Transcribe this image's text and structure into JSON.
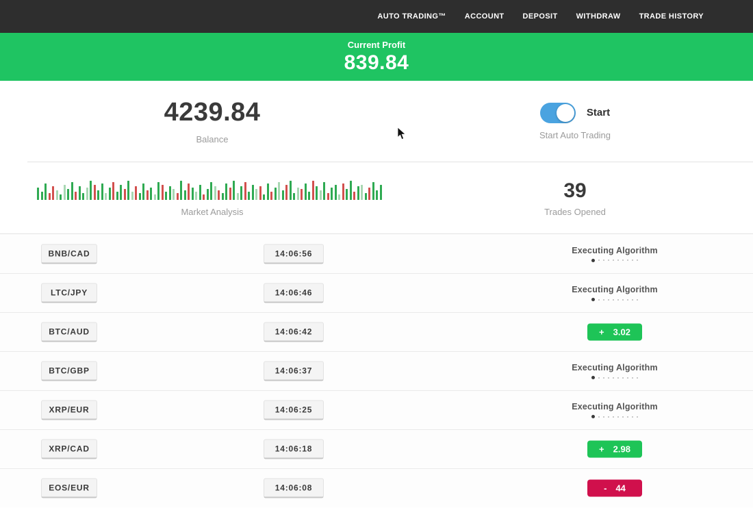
{
  "nav": {
    "items": [
      {
        "id": "auto-trading",
        "label": "AUTO TRADING™"
      },
      {
        "id": "account",
        "label": "ACCOUNT"
      },
      {
        "id": "deposit",
        "label": "DEPOSIT"
      },
      {
        "id": "withdraw",
        "label": "WITHDRAW"
      },
      {
        "id": "trade-history",
        "label": "TRADE HISTORY"
      }
    ]
  },
  "profit_banner": {
    "label": "Current Profit",
    "value": "839.84"
  },
  "account": {
    "balance_value": "4239.84",
    "balance_label": "Balance",
    "toggle_label": "Start",
    "toggle_sublabel": "Start Auto Trading",
    "toggle_state": "on"
  },
  "market": {
    "chart_label": "Market Analysis",
    "trades_opened_value": "39",
    "trades_opened_label": "Trades Opened",
    "bars": [
      [
        18,
        "g"
      ],
      [
        12,
        "g"
      ],
      [
        24,
        "g"
      ],
      [
        10,
        "r"
      ],
      [
        20,
        "r"
      ],
      [
        14,
        "lg"
      ],
      [
        8,
        "g"
      ],
      [
        22,
        "lg"
      ],
      [
        16,
        "g"
      ],
      [
        26,
        "g"
      ],
      [
        12,
        "r"
      ],
      [
        20,
        "g"
      ],
      [
        10,
        "g"
      ],
      [
        18,
        "lg"
      ],
      [
        28,
        "g"
      ],
      [
        22,
        "r"
      ],
      [
        14,
        "g"
      ],
      [
        24,
        "g"
      ],
      [
        10,
        "lg"
      ],
      [
        18,
        "g"
      ],
      [
        26,
        "r"
      ],
      [
        12,
        "g"
      ],
      [
        22,
        "g"
      ],
      [
        16,
        "r"
      ],
      [
        28,
        "g"
      ],
      [
        12,
        "lg"
      ],
      [
        20,
        "r"
      ],
      [
        10,
        "g"
      ],
      [
        24,
        "g"
      ],
      [
        14,
        "r"
      ],
      [
        18,
        "g"
      ],
      [
        8,
        "lg"
      ],
      [
        26,
        "g"
      ],
      [
        22,
        "r"
      ],
      [
        12,
        "g"
      ],
      [
        20,
        "g"
      ],
      [
        16,
        "lg"
      ],
      [
        10,
        "r"
      ],
      [
        28,
        "g"
      ],
      [
        14,
        "g"
      ],
      [
        24,
        "r"
      ],
      [
        18,
        "g"
      ],
      [
        12,
        "lg"
      ],
      [
        22,
        "g"
      ],
      [
        8,
        "r"
      ],
      [
        16,
        "g"
      ],
      [
        26,
        "g"
      ],
      [
        20,
        "lg"
      ],
      [
        14,
        "r"
      ],
      [
        10,
        "g"
      ],
      [
        24,
        "g"
      ],
      [
        18,
        "r"
      ],
      [
        28,
        "g"
      ],
      [
        10,
        "lg"
      ],
      [
        20,
        "g"
      ],
      [
        26,
        "r"
      ],
      [
        12,
        "g"
      ],
      [
        22,
        "g"
      ],
      [
        16,
        "lg"
      ],
      [
        20,
        "r"
      ],
      [
        8,
        "g"
      ],
      [
        24,
        "g"
      ],
      [
        12,
        "r"
      ],
      [
        18,
        "g"
      ],
      [
        26,
        "lg"
      ],
      [
        14,
        "g"
      ],
      [
        22,
        "r"
      ],
      [
        28,
        "g"
      ],
      [
        10,
        "g"
      ],
      [
        18,
        "lg"
      ],
      [
        16,
        "r"
      ],
      [
        24,
        "g"
      ],
      [
        12,
        "g"
      ],
      [
        28,
        "r"
      ],
      [
        20,
        "g"
      ],
      [
        14,
        "lg"
      ],
      [
        26,
        "g"
      ],
      [
        10,
        "r"
      ],
      [
        18,
        "g"
      ],
      [
        22,
        "g"
      ],
      [
        8,
        "lg"
      ],
      [
        24,
        "r"
      ],
      [
        16,
        "g"
      ],
      [
        28,
        "g"
      ],
      [
        12,
        "r"
      ],
      [
        20,
        "g"
      ],
      [
        22,
        "lg"
      ],
      [
        10,
        "g"
      ],
      [
        18,
        "r"
      ],
      [
        26,
        "g"
      ],
      [
        14,
        "g"
      ],
      [
        22,
        "g"
      ]
    ]
  },
  "trades_meta": {
    "status_dots_total": 10,
    "status_dots_active": 1
  },
  "trades": [
    {
      "pair": "BNB/CAD",
      "time": "14:06:56",
      "status": "executing",
      "status_label": "Executing Algorithm"
    },
    {
      "pair": "LTC/JPY",
      "time": "14:06:46",
      "status": "executing",
      "status_label": "Executing Algorithm"
    },
    {
      "pair": "BTC/AUD",
      "time": "14:06:42",
      "status": "profit",
      "sign": "+",
      "amount": "3.02"
    },
    {
      "pair": "BTC/GBP",
      "time": "14:06:37",
      "status": "executing",
      "status_label": "Executing Algorithm"
    },
    {
      "pair": "XRP/EUR",
      "time": "14:06:25",
      "status": "executing",
      "status_label": "Executing Algorithm"
    },
    {
      "pair": "XRP/CAD",
      "time": "14:06:18",
      "status": "profit",
      "sign": "+",
      "amount": "2.98"
    },
    {
      "pair": "EOS/EUR",
      "time": "14:06:08",
      "status": "loss",
      "sign": "-",
      "amount": "44"
    }
  ],
  "colors": {
    "nav_bg": "#2e2e2e",
    "banner_green": "#1fc462",
    "badge_green": "#1ec457",
    "badge_red": "#d0104c",
    "toggle_blue": "#4aa3e0",
    "chart_green": "#2faa52",
    "chart_red": "#d2504e"
  }
}
